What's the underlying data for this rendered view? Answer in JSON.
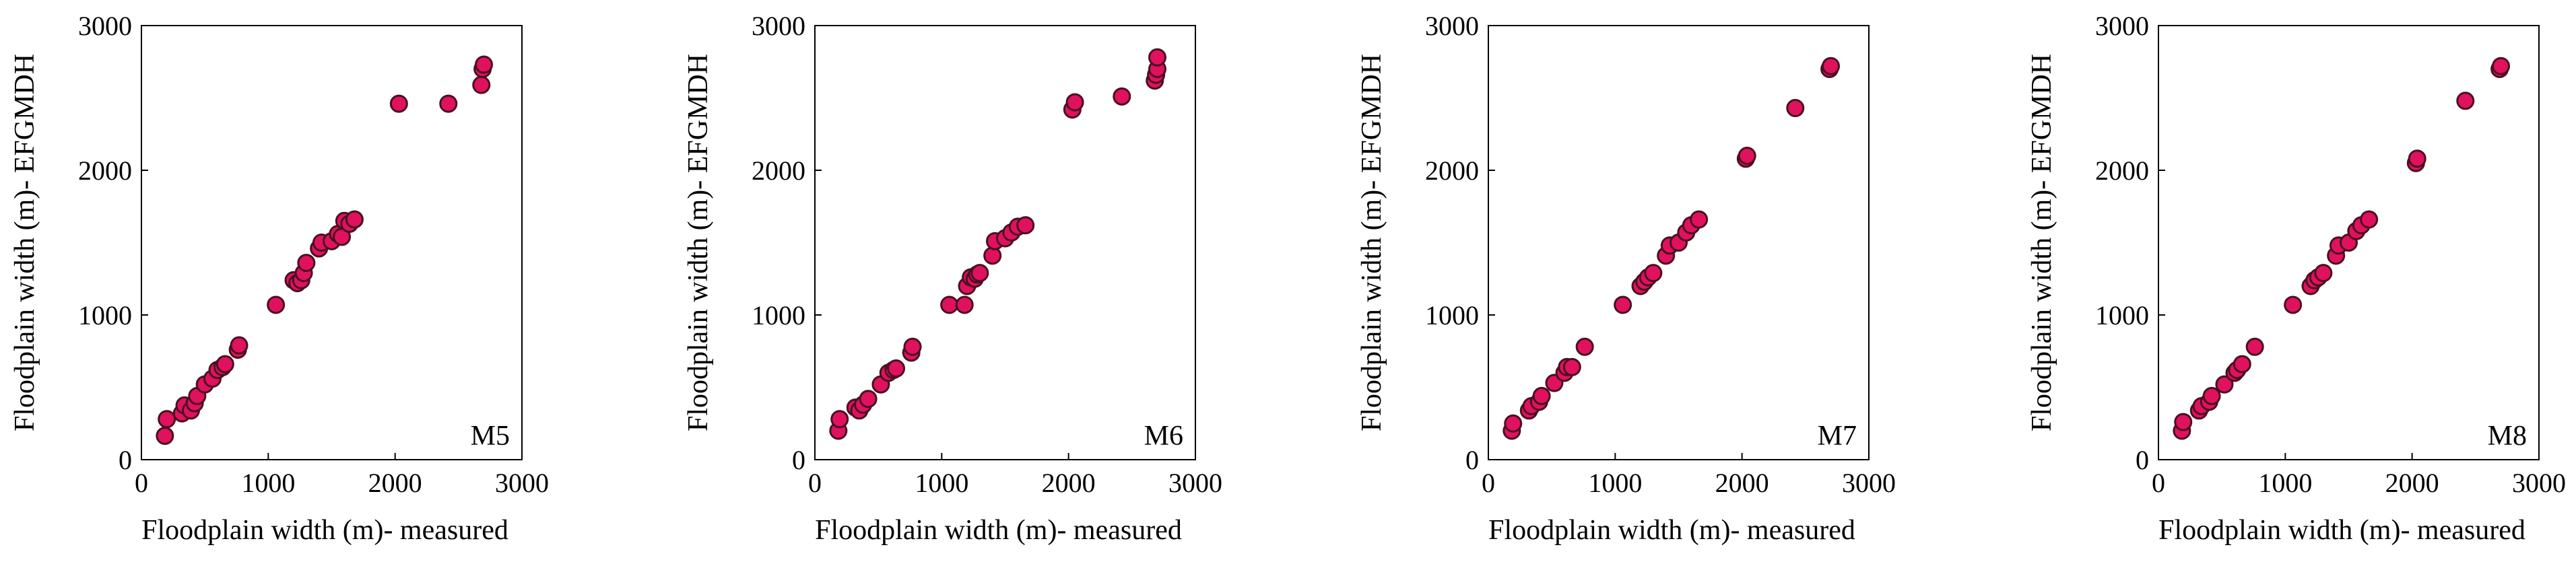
{
  "colors": {
    "marker_fill": "#e0115f",
    "marker_edge": "#4a1020",
    "axis": "#000000"
  },
  "chart_data": [
    {
      "type": "scatter",
      "label": "M5",
      "xlabel": "Floodplain width (m)- measured",
      "ylabel": "Floodplain width (m)- EFGMDH",
      "xlim": [
        0,
        3000
      ],
      "ylim": [
        0,
        3000
      ],
      "xticks": [
        0,
        1000,
        2000,
        3000
      ],
      "yticks": [
        0,
        1000,
        2000,
        3000
      ],
      "grid": false,
      "points": [
        [
          185,
          165
        ],
        [
          200,
          280
        ],
        [
          320,
          320
        ],
        [
          340,
          375
        ],
        [
          390,
          340
        ],
        [
          420,
          390
        ],
        [
          440,
          440
        ],
        [
          500,
          520
        ],
        [
          560,
          560
        ],
        [
          600,
          620
        ],
        [
          640,
          640
        ],
        [
          660,
          660
        ],
        [
          760,
          760
        ],
        [
          770,
          790
        ],
        [
          1060,
          1070
        ],
        [
          1200,
          1240
        ],
        [
          1230,
          1220
        ],
        [
          1260,
          1240
        ],
        [
          1280,
          1290
        ],
        [
          1300,
          1360
        ],
        [
          1400,
          1460
        ],
        [
          1420,
          1500
        ],
        [
          1500,
          1510
        ],
        [
          1550,
          1560
        ],
        [
          1580,
          1540
        ],
        [
          1600,
          1650
        ],
        [
          1640,
          1630
        ],
        [
          1680,
          1660
        ],
        [
          2030,
          2460
        ],
        [
          2420,
          2460
        ],
        [
          2680,
          2590
        ],
        [
          2690,
          2700
        ],
        [
          2700,
          2730
        ]
      ]
    },
    {
      "type": "scatter",
      "label": "M6",
      "xlabel": "Floodplain width (m)- measured",
      "ylabel": "Floodplain width (m)- EFGMDH",
      "xlim": [
        0,
        3000
      ],
      "ylim": [
        0,
        3000
      ],
      "xticks": [
        0,
        1000,
        2000,
        3000
      ],
      "yticks": [
        0,
        1000,
        2000,
        3000
      ],
      "grid": false,
      "points": [
        [
          185,
          200
        ],
        [
          195,
          280
        ],
        [
          320,
          360
        ],
        [
          350,
          340
        ],
        [
          380,
          380
        ],
        [
          420,
          420
        ],
        [
          520,
          520
        ],
        [
          580,
          600
        ],
        [
          620,
          620
        ],
        [
          640,
          630
        ],
        [
          760,
          740
        ],
        [
          770,
          780
        ],
        [
          1060,
          1070
        ],
        [
          1180,
          1070
        ],
        [
          1200,
          1200
        ],
        [
          1230,
          1260
        ],
        [
          1260,
          1250
        ],
        [
          1280,
          1280
        ],
        [
          1300,
          1290
        ],
        [
          1400,
          1410
        ],
        [
          1420,
          1510
        ],
        [
          1500,
          1530
        ],
        [
          1550,
          1570
        ],
        [
          1600,
          1610
        ],
        [
          1660,
          1620
        ],
        [
          2030,
          2420
        ],
        [
          2050,
          2470
        ],
        [
          2420,
          2510
        ],
        [
          2680,
          2620
        ],
        [
          2690,
          2660
        ],
        [
          2700,
          2700
        ],
        [
          2700,
          2780
        ]
      ]
    },
    {
      "type": "scatter",
      "label": "M7",
      "xlabel": "Floodplain width (m)- measured",
      "ylabel": "Floodplain width (m)- EFGMDH",
      "xlim": [
        0,
        3000
      ],
      "ylim": [
        0,
        3000
      ],
      "xticks": [
        0,
        1000,
        2000,
        3000
      ],
      "yticks": [
        0,
        1000,
        2000,
        3000
      ],
      "grid": false,
      "points": [
        [
          185,
          200
        ],
        [
          195,
          250
        ],
        [
          320,
          340
        ],
        [
          340,
          370
        ],
        [
          400,
          400
        ],
        [
          420,
          440
        ],
        [
          520,
          530
        ],
        [
          600,
          600
        ],
        [
          620,
          640
        ],
        [
          660,
          640
        ],
        [
          760,
          780
        ],
        [
          1060,
          1070
        ],
        [
          1200,
          1200
        ],
        [
          1230,
          1230
        ],
        [
          1260,
          1260
        ],
        [
          1300,
          1290
        ],
        [
          1400,
          1410
        ],
        [
          1430,
          1480
        ],
        [
          1500,
          1500
        ],
        [
          1560,
          1570
        ],
        [
          1600,
          1620
        ],
        [
          1660,
          1660
        ],
        [
          2030,
          2080
        ],
        [
          2040,
          2100
        ],
        [
          2420,
          2430
        ],
        [
          2690,
          2700
        ],
        [
          2700,
          2720
        ]
      ]
    },
    {
      "type": "scatter",
      "label": "M8",
      "xlabel": "Floodplain width (m)- measured",
      "ylabel": "Floodplain width (m)- EFGMDH",
      "xlim": [
        0,
        3000
      ],
      "ylim": [
        0,
        3000
      ],
      "xticks": [
        0,
        1000,
        2000,
        3000
      ],
      "yticks": [
        0,
        1000,
        2000,
        3000
      ],
      "grid": false,
      "points": [
        [
          185,
          200
        ],
        [
          195,
          260
        ],
        [
          320,
          340
        ],
        [
          340,
          370
        ],
        [
          400,
          400
        ],
        [
          420,
          440
        ],
        [
          520,
          520
        ],
        [
          600,
          600
        ],
        [
          620,
          620
        ],
        [
          660,
          660
        ],
        [
          760,
          780
        ],
        [
          1060,
          1070
        ],
        [
          1200,
          1200
        ],
        [
          1230,
          1240
        ],
        [
          1260,
          1260
        ],
        [
          1300,
          1290
        ],
        [
          1400,
          1410
        ],
        [
          1420,
          1480
        ],
        [
          1500,
          1500
        ],
        [
          1560,
          1580
        ],
        [
          1600,
          1620
        ],
        [
          1660,
          1660
        ],
        [
          2030,
          2050
        ],
        [
          2040,
          2080
        ],
        [
          2420,
          2480
        ],
        [
          2690,
          2700
        ],
        [
          2700,
          2720
        ]
      ]
    }
  ]
}
